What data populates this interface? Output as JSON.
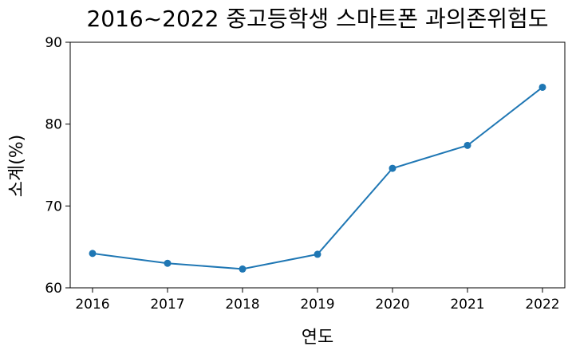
{
  "chart_data": {
    "type": "line",
    "title": "2016~2022 중고등학생 스마트폰 과의존위험도",
    "xlabel": "연도",
    "ylabel": "소계(%)",
    "x": [
      "2016",
      "2017",
      "2018",
      "2019",
      "2020",
      "2021",
      "2022"
    ],
    "series": [
      {
        "values": [
          64.2,
          63.0,
          62.3,
          64.1,
          74.6,
          77.4,
          84.5
        ]
      }
    ],
    "ylim": [
      60,
      90
    ],
    "yticks": [
      "60",
      "70",
      "80",
      "90"
    ],
    "grid": false,
    "color": "#1f77b4"
  }
}
